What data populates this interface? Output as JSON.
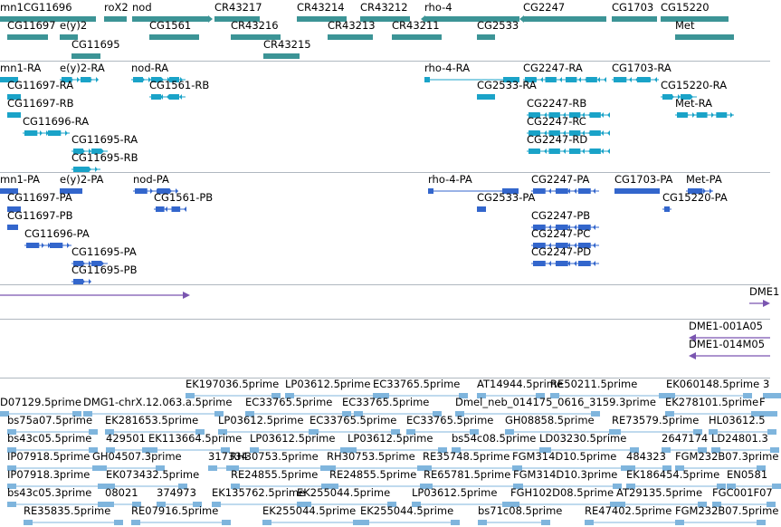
{
  "colors": {
    "gene": "#3c9496",
    "transcript": "#1aa3c8",
    "protein": "#3366cc",
    "region": "#7a55b0",
    "est": "#7fb5dd",
    "divider": "#b0b8c0"
  },
  "tracks": {
    "genes": {
      "features": [
        {
          "label": "mn1",
          "dir": "none"
        },
        {
          "label": "CG11696",
          "dir": "none"
        },
        {
          "label": "roX2",
          "dir": "none"
        },
        {
          "label": "nod",
          "dir": "right"
        },
        {
          "label": "CR43217",
          "dir": "none"
        },
        {
          "label": "CR43214",
          "dir": "none"
        },
        {
          "label": "CR43212",
          "dir": "none"
        },
        {
          "label": "rho-4",
          "dir": "left"
        },
        {
          "label": "CG2247",
          "dir": "left"
        },
        {
          "label": "CG1703",
          "dir": "none"
        },
        {
          "label": "CG15220",
          "dir": "none"
        },
        {
          "label": "CG11697",
          "dir": "none"
        },
        {
          "label": "e(y)2",
          "dir": "none"
        },
        {
          "label": "CG1561",
          "dir": "none"
        },
        {
          "label": "CR43216",
          "dir": "none"
        },
        {
          "label": "CR43213",
          "dir": "none"
        },
        {
          "label": "CR43211",
          "dir": "none"
        },
        {
          "label": "CG2533",
          "dir": "none"
        },
        {
          "label": "Met",
          "dir": "none"
        },
        {
          "label": "CG11695",
          "dir": "none"
        },
        {
          "label": "CR43215",
          "dir": "none"
        }
      ]
    },
    "transcripts": {
      "features": [
        {
          "label": "mn1-RA",
          "dir": "none"
        },
        {
          "label": "e(y)2-RA",
          "dir": "right"
        },
        {
          "label": "nod-RA",
          "dir": "right"
        },
        {
          "label": "rho-4-RA",
          "dir": "left"
        },
        {
          "label": "CG2247-RA",
          "dir": "left"
        },
        {
          "label": "CG1703-RA",
          "dir": "left"
        },
        {
          "label": "CG11697-RA",
          "dir": "none"
        },
        {
          "label": "CG1561-RB",
          "dir": "left"
        },
        {
          "label": "CG2533-RA",
          "dir": "none"
        },
        {
          "label": "CG15220-RA",
          "dir": "right"
        },
        {
          "label": "CG11697-RB",
          "dir": "none"
        },
        {
          "label": "CG2247-RB",
          "dir": "left"
        },
        {
          "label": "Met-RA",
          "dir": "right"
        },
        {
          "label": "CG11696-RA",
          "dir": "right"
        },
        {
          "label": "CG2247-RC",
          "dir": "left"
        },
        {
          "label": "CG11695-RA",
          "dir": "right"
        },
        {
          "label": "CG2247-RD",
          "dir": "left"
        },
        {
          "label": "CG11695-RB",
          "dir": "right"
        }
      ]
    },
    "proteins": {
      "features": [
        {
          "label": "mn1-PA",
          "dir": "none"
        },
        {
          "label": "e(y)2-PA",
          "dir": "none"
        },
        {
          "label": "nod-PA",
          "dir": "right"
        },
        {
          "label": "rho-4-PA",
          "dir": "left"
        },
        {
          "label": "CG2247-PA",
          "dir": "left"
        },
        {
          "label": "CG1703-PA",
          "dir": "none"
        },
        {
          "label": "Met-PA",
          "dir": "right"
        },
        {
          "label": "CG11697-PA",
          "dir": "none"
        },
        {
          "label": "CG1561-PB",
          "dir": "left"
        },
        {
          "label": "CG2533-PA",
          "dir": "none"
        },
        {
          "label": "CG15220-PA",
          "dir": "right"
        },
        {
          "label": "CG11697-PB",
          "dir": "none"
        },
        {
          "label": "CG2247-PB",
          "dir": "left"
        },
        {
          "label": "CG11696-PA",
          "dir": "right"
        },
        {
          "label": "CG2247-PC",
          "dir": "left"
        },
        {
          "label": "CG11695-PA",
          "dir": "right"
        },
        {
          "label": "CG2247-PD",
          "dir": "left"
        },
        {
          "label": "CG11695-PB",
          "dir": "right"
        }
      ]
    },
    "region": {
      "features": [
        {
          "label": "",
          "dir": "right"
        },
        {
          "label": "DME1",
          "dir": "none"
        }
      ]
    },
    "clones": {
      "features": [
        {
          "label": "DME1-001A05",
          "dir": "left"
        },
        {
          "label": "DME1-014M05",
          "dir": "left"
        }
      ]
    },
    "ests": {
      "features": [
        {
          "label": "EK197036.5prime"
        },
        {
          "label": "LP03612.5prime"
        },
        {
          "label": "EC33765.5prime"
        },
        {
          "label": "AT14944.5prime"
        },
        {
          "label": "RE50211.5prime"
        },
        {
          "label": "EK060148.5prime"
        },
        {
          "label": "3"
        },
        {
          "label": "D07129.5prime"
        },
        {
          "label": "DMG1-chrX.12.063.a.5prime"
        },
        {
          "label": "EC33765.5prime"
        },
        {
          "label": "EC33765.5prime"
        },
        {
          "label": "Dmel_neb_014175_0616_3159.3prime"
        },
        {
          "label": "EK278101.5prime"
        },
        {
          "label": "F"
        },
        {
          "label": "bs75a07.5prime"
        },
        {
          "label": "EK281653.5prime"
        },
        {
          "label": "LP03612.5prime"
        },
        {
          "label": "EC33765.5prime"
        },
        {
          "label": "EC33765.5prime"
        },
        {
          "label": "GH08858.5prime"
        },
        {
          "label": "RE73579.5prime"
        },
        {
          "label": "HL03612.5"
        },
        {
          "label": "bs43c05.5prime"
        },
        {
          "label": "429501"
        },
        {
          "label": "EK113664.5prime"
        },
        {
          "label": "LP03612.5prime"
        },
        {
          "label": "LP03612.5prime"
        },
        {
          "label": "bs54c08.5prime"
        },
        {
          "label": "LD03230.5prime"
        },
        {
          "label": "2647174"
        },
        {
          "label": "LD24801.3"
        },
        {
          "label": "IP07918.5prime"
        },
        {
          "label": "GH04507.3prime"
        },
        {
          "label": "317334"
        },
        {
          "label": "RH30753.5prime"
        },
        {
          "label": "RH30753.5prime"
        },
        {
          "label": "RE35748.5prime"
        },
        {
          "label": "FGM314D10.5prime"
        },
        {
          "label": "484323"
        },
        {
          "label": "FGM232B07.3prime"
        },
        {
          "label": "IP07918.3prime"
        },
        {
          "label": "EK073432.5prime"
        },
        {
          "label": "RE24855.5prime"
        },
        {
          "label": "RE24855.5prime"
        },
        {
          "label": "RE65781.5prime"
        },
        {
          "label": "FGM314D10.3prime"
        },
        {
          "label": "EK186454.5prime"
        },
        {
          "label": "EN0581"
        },
        {
          "label": "bs43c05.3prime"
        },
        {
          "label": "08021"
        },
        {
          "label": "374973"
        },
        {
          "label": "EK135762.5prime"
        },
        {
          "label": "EK255044.5prime"
        },
        {
          "label": "LP03612.5prime"
        },
        {
          "label": "FGH102D08.5prime"
        },
        {
          "label": "AT29135.5prime"
        },
        {
          "label": "FGC001F07"
        },
        {
          "label": "RE35835.5prime"
        },
        {
          "label": "RE07916.5prime"
        },
        {
          "label": "EK255044.5prime"
        },
        {
          "label": "EK255044.5prime"
        },
        {
          "label": "bs71c08.5prime"
        },
        {
          "label": "RE47402.5prime"
        },
        {
          "label": "FGM232B07.5prime"
        }
      ]
    }
  }
}
